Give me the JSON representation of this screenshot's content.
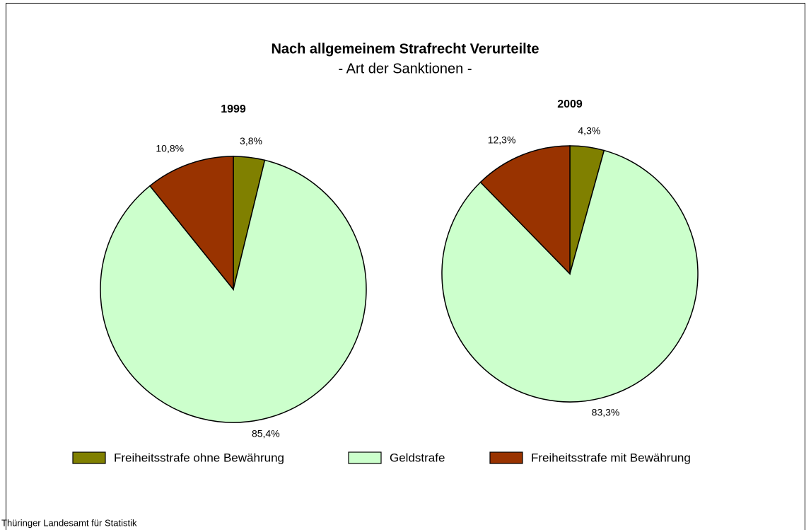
{
  "title": "Nach allgemeinem Strafrecht Verurteilte",
  "subtitle": "- Art der Sanktionen -",
  "source": "Thüringer Landesamt für Statistik",
  "chart_data": [
    {
      "type": "pie",
      "title": "1999",
      "categories": [
        "Freiheitsstrafe ohne Bewährung",
        "Geldstrafe",
        "Freiheitsstrafe mit Bewährung"
      ],
      "values": [
        3.8,
        85.4,
        10.8
      ],
      "value_labels": [
        "3,8%",
        "85,4%",
        "10,8%"
      ],
      "colors": [
        "#808000",
        "#ccffcc",
        "#993300"
      ],
      "legend": "bottom"
    },
    {
      "type": "pie",
      "title": "2009",
      "categories": [
        "Freiheitsstrafe ohne Bewährung",
        "Geldstrafe",
        "Freiheitsstrafe mit Bewährung"
      ],
      "values": [
        4.3,
        83.3,
        12.3
      ],
      "value_labels": [
        "4,3%",
        "83,3%",
        "12,3%"
      ],
      "colors": [
        "#808000",
        "#ccffcc",
        "#993300"
      ],
      "legend": "bottom"
    }
  ]
}
